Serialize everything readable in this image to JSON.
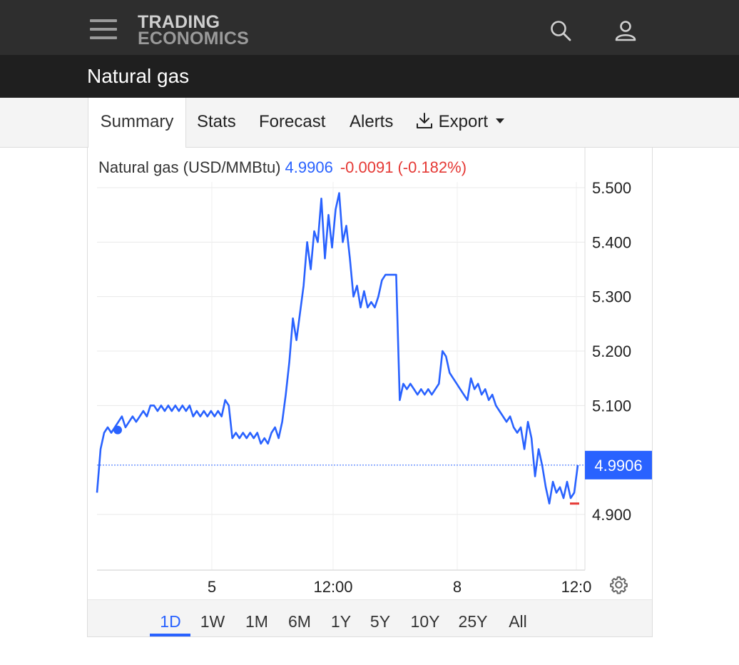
{
  "header": {
    "logo_line1": "TRADING",
    "logo_line2": "ECONOMICS",
    "icons": [
      "menu-icon",
      "search-icon",
      "user-icon"
    ]
  },
  "page": {
    "title": "Natural gas"
  },
  "tabs": [
    {
      "label": "Summary",
      "active": true
    },
    {
      "label": "Stats",
      "active": false
    },
    {
      "label": "Forecast",
      "active": false
    },
    {
      "label": "Alerts",
      "active": false
    },
    {
      "label": "Export",
      "active": false,
      "icon": "download-icon",
      "dropdown": true
    }
  ],
  "quote": {
    "name": "Natural gas (USD/MMBtu)",
    "price": "4.9906",
    "change": "-0.0091",
    "change_pct": "(-0.182%)"
  },
  "ranges": [
    "1D",
    "1W",
    "1M",
    "6M",
    "1Y",
    "5Y",
    "10Y",
    "25Y",
    "All"
  ],
  "active_range": "1D",
  "colors": {
    "line": "#2962ff",
    "negative": "#e53935",
    "topbar": "#2e2e2e",
    "titlebar": "#1f1f1f"
  },
  "chart_data": {
    "type": "line",
    "series": [
      {
        "values": [
          4.94,
          5.02,
          5.05,
          5.06,
          5.05,
          5.06,
          5.07,
          5.08,
          5.06,
          5.07,
          5.08,
          5.07,
          5.08,
          5.09,
          5.08,
          5.1,
          5.1,
          5.09,
          5.1,
          5.09,
          5.1,
          5.09,
          5.1,
          5.09,
          5.1,
          5.09,
          5.1,
          5.08,
          5.09,
          5.08,
          5.09,
          5.08,
          5.09,
          5.08,
          5.09,
          5.08,
          5.11,
          5.1,
          5.04,
          5.05,
          5.04,
          5.05,
          5.04,
          5.05,
          5.04,
          5.05,
          5.03,
          5.04,
          5.03,
          5.05,
          5.06,
          5.04,
          5.07,
          5.12,
          5.18,
          5.26,
          5.22,
          5.27,
          5.32,
          5.4,
          5.35,
          5.42,
          5.4,
          5.48,
          5.37,
          5.45,
          5.39,
          5.46,
          5.49,
          5.4,
          5.43,
          5.37,
          5.3,
          5.32,
          5.28,
          5.31,
          5.28,
          5.29,
          5.28,
          5.3,
          5.33,
          5.34,
          5.34,
          5.34,
          5.34,
          5.11,
          5.14,
          5.13,
          5.14,
          5.13,
          5.12,
          5.13,
          5.12,
          5.13,
          5.12,
          5.13,
          5.14,
          5.2,
          5.19,
          5.16,
          5.15,
          5.14,
          5.13,
          5.12,
          5.11,
          5.15,
          5.13,
          5.14,
          5.12,
          5.13,
          5.11,
          5.12,
          5.1,
          5.09,
          5.08,
          5.07,
          5.08,
          5.06,
          5.05,
          5.06,
          5.02,
          5.07,
          5.04,
          4.97,
          5.02,
          4.99,
          4.95,
          4.92,
          4.96,
          4.94,
          4.95,
          4.93,
          4.96,
          4.93,
          4.94,
          4.9906
        ]
      }
    ],
    "last_price": 4.9906,
    "previous_close_marker": 4.92,
    "y_ticks": [
      "5.500",
      "5.400",
      "5.300",
      "5.200",
      "5.100",
      "4.900"
    ],
    "y_tick_values": [
      5.5,
      5.4,
      5.3,
      5.2,
      5.1,
      4.9
    ],
    "x_ticks": [
      "5",
      "12:00",
      "8",
      "12:0"
    ],
    "ylim": [
      4.8,
      5.55
    ],
    "grid": true
  }
}
